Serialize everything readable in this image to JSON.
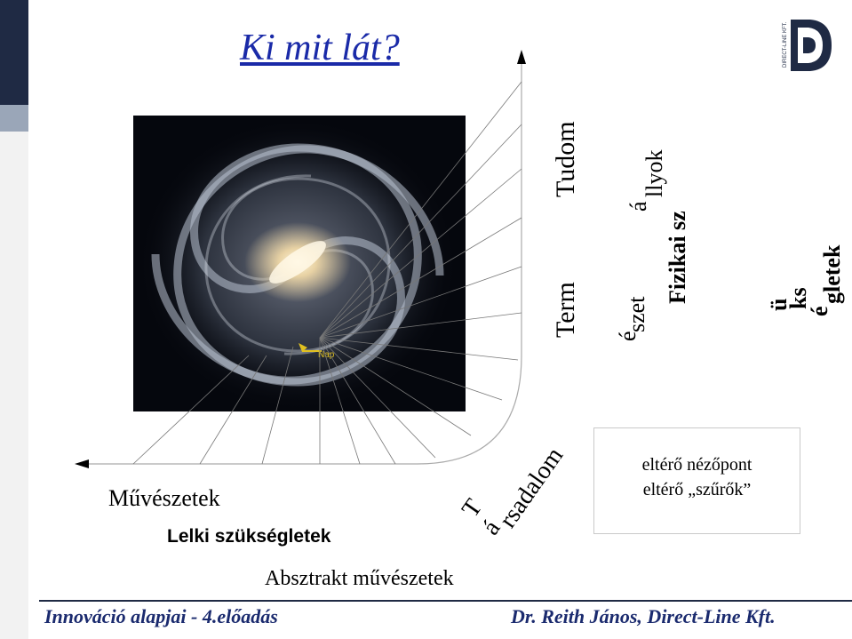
{
  "title": "Ki mit lát?",
  "galaxy": {
    "marker_label": "Nap"
  },
  "labels": {
    "term": "Term",
    "tudom": "Tudom",
    "eszet_e": "é",
    "eszet": "szet",
    "fizikai": "Fizikai sz",
    "allyok_a": "á",
    "allyok": "llyok",
    "ii": "ü",
    "kes": "ks",
    "gletek_e": "é",
    "gletek": "gletek",
    "tarsadalom_t": "T",
    "tarsadalom_a": "á",
    "tarsadalom": "rsadalom",
    "muveszetek": "Művészetek",
    "lelki": "Lelki szükségletek",
    "absztrakt": "Absztrakt művészetek"
  },
  "box": {
    "line1": "eltérő nézőpont",
    "line2": "eltérő „szűrők”"
  },
  "footer": {
    "left": "Innováció alapjai - 4.előadás",
    "right": "Dr. Reith János, Direct-Line Kft."
  },
  "logo": {
    "text": "DIRECT-LINE KFT."
  },
  "colors": {
    "title": "#1a2aa8",
    "footer": "#1a2a6e",
    "sidebar": "#1f2a44"
  }
}
